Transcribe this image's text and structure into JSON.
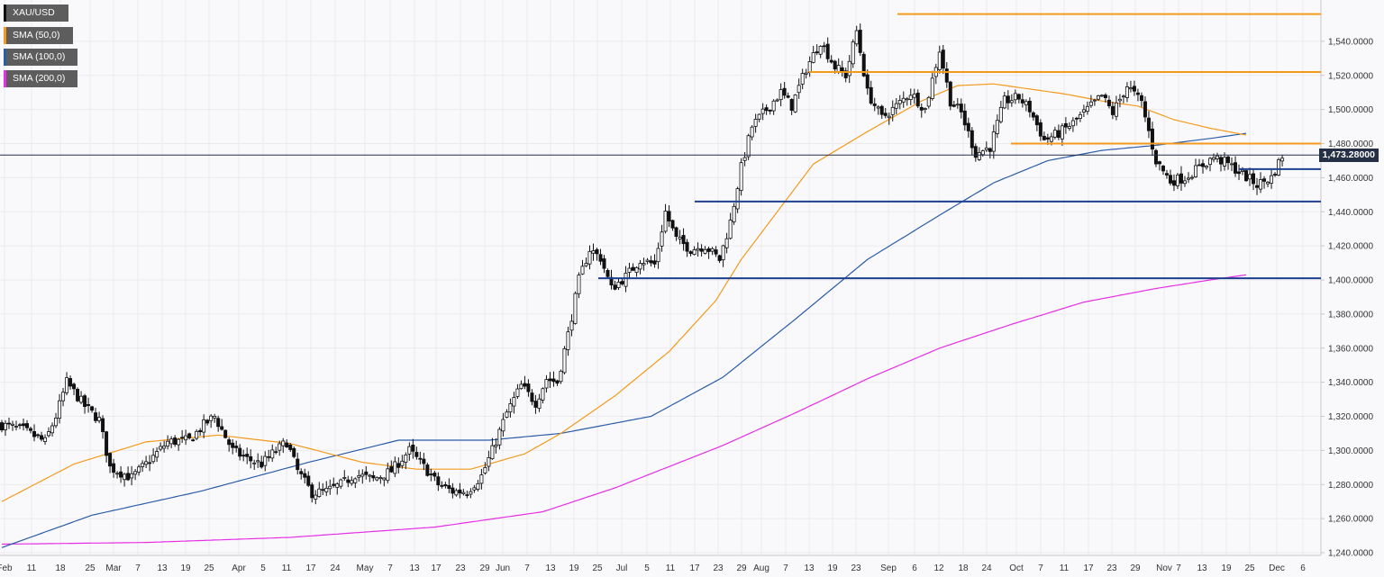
{
  "chart_data": {
    "type": "candlestick",
    "symbol": "XAU/USD",
    "ylim": [
      1240,
      1560
    ],
    "y_ticks": [
      "1,240.0000",
      "1,260.0000",
      "1,280.0000",
      "1,300.0000",
      "1,320.0000",
      "1,340.0000",
      "1,360.0000",
      "1,380.0000",
      "1,400.0000",
      "1,420.0000",
      "1,440.0000",
      "1,460.0000",
      "1,480.0000",
      "1,500.0000",
      "1,520.0000",
      "1,540.0000"
    ],
    "y_tick_values": [
      1240,
      1260,
      1280,
      1300,
      1320,
      1340,
      1360,
      1380,
      1400,
      1420,
      1440,
      1460,
      1480,
      1500,
      1520,
      1540
    ],
    "x_labels": [
      "Feb",
      "11",
      "18",
      "25",
      "Mar",
      "7",
      "13",
      "19",
      "25",
      "Apr",
      "5",
      "11",
      "17",
      "24",
      "May",
      "7",
      "13",
      "17",
      "23",
      "29",
      "Jun",
      "7",
      "13",
      "19",
      "25",
      "Jul",
      "5",
      "11",
      "17",
      "23",
      "29",
      "Aug",
      "7",
      "13",
      "19",
      "23",
      "Sep",
      "6",
      "12",
      "18",
      "24",
      "Oct",
      "7",
      "11",
      "17",
      "23",
      "29",
      "Nov",
      "7",
      "13",
      "19",
      "25",
      "Dec",
      "6"
    ],
    "legend": [
      {
        "label": "XAU/USD",
        "color": "#111111"
      },
      {
        "label": "SMA (50,0)",
        "color": "#f39a1c"
      },
      {
        "label": "SMA (100,0)",
        "color": "#2a5ca8"
      },
      {
        "label": "SMA (200,0)",
        "color": "#e52ee5"
      }
    ],
    "current_price": {
      "value": 1473.28,
      "label": "1,473.28000"
    },
    "horizontal_levels": [
      {
        "value": 1556,
        "color": "#f39a1c",
        "from": "Sep 1"
      },
      {
        "value": 1522,
        "color": "#f39a1c",
        "from": "Aug 16"
      },
      {
        "value": 1480,
        "color": "#f39a1c",
        "from": "Oct 1"
      },
      {
        "value": 1465,
        "color": "#1f3f8f",
        "from": "Nov 20"
      },
      {
        "value": 1446,
        "color": "#1f3f8f",
        "from": "Jun 20"
      },
      {
        "value": 1401,
        "color": "#1f3f8f",
        "from": "Jun 25"
      }
    ],
    "close_anchors": [
      [
        0,
        1315
      ],
      [
        6,
        1312
      ],
      [
        12,
        1305
      ],
      [
        15,
        1320
      ],
      [
        18,
        1340
      ],
      [
        23,
        1326
      ],
      [
        27,
        1318
      ],
      [
        30,
        1290
      ],
      [
        36,
        1284
      ],
      [
        40,
        1292
      ],
      [
        46,
        1305
      ],
      [
        52,
        1306
      ],
      [
        56,
        1315
      ],
      [
        59,
        1320
      ],
      [
        64,
        1300
      ],
      [
        68,
        1295
      ],
      [
        72,
        1292
      ],
      [
        75,
        1298
      ],
      [
        79,
        1305
      ],
      [
        82,
        1288
      ],
      [
        86,
        1275
      ],
      [
        90,
        1276
      ],
      [
        94,
        1280
      ],
      [
        98,
        1286
      ],
      [
        103,
        1283
      ],
      [
        108,
        1288
      ],
      [
        113,
        1300
      ],
      [
        118,
        1288
      ],
      [
        121,
        1280
      ],
      [
        125,
        1276
      ],
      [
        129,
        1276
      ],
      [
        133,
        1285
      ],
      [
        136,
        1300
      ],
      [
        140,
        1322
      ],
      [
        144,
        1338
      ],
      [
        148,
        1328
      ],
      [
        151,
        1342
      ],
      [
        154,
        1340
      ],
      [
        157,
        1368
      ],
      [
        160,
        1400
      ],
      [
        163,
        1418
      ],
      [
        166,
        1413
      ],
      [
        169,
        1395
      ],
      [
        173,
        1402
      ],
      [
        177,
        1412
      ],
      [
        181,
        1409
      ],
      [
        184,
        1440
      ],
      [
        187,
        1424
      ],
      [
        191,
        1418
      ],
      [
        195,
        1420
      ],
      [
        199,
        1412
      ],
      [
        202,
        1434
      ],
      [
        205,
        1466
      ],
      [
        208,
        1490
      ],
      [
        212,
        1500
      ],
      [
        216,
        1510
      ],
      [
        219,
        1502
      ],
      [
        223,
        1524
      ],
      [
        227,
        1540
      ],
      [
        231,
        1525
      ],
      [
        234,
        1520
      ],
      [
        237,
        1546
      ],
      [
        240,
        1510
      ],
      [
        244,
        1495
      ],
      [
        248,
        1502
      ],
      [
        252,
        1510
      ],
      [
        256,
        1500
      ],
      [
        260,
        1535
      ],
      [
        263,
        1505
      ],
      [
        266,
        1498
      ],
      [
        270,
        1474
      ],
      [
        274,
        1478
      ],
      [
        278,
        1505
      ],
      [
        282,
        1507
      ],
      [
        285,
        1500
      ],
      [
        289,
        1482
      ],
      [
        293,
        1486
      ],
      [
        297,
        1492
      ],
      [
        301,
        1500
      ],
      [
        305,
        1508
      ],
      [
        308,
        1498
      ],
      [
        312,
        1514
      ],
      [
        316,
        1504
      ],
      [
        320,
        1470
      ],
      [
        324,
        1458
      ],
      [
        328,
        1460
      ],
      [
        332,
        1466
      ],
      [
        336,
        1472
      ],
      [
        340,
        1468
      ],
      [
        344,
        1462
      ],
      [
        348,
        1456
      ],
      [
        352,
        1460
      ],
      [
        355,
        1473
      ]
    ],
    "sma50_anchors": [
      [
        0,
        1270
      ],
      [
        20,
        1292
      ],
      [
        40,
        1305
      ],
      [
        60,
        1309
      ],
      [
        80,
        1304
      ],
      [
        100,
        1293
      ],
      [
        115,
        1289
      ],
      [
        130,
        1289
      ],
      [
        145,
        1298
      ],
      [
        155,
        1310
      ],
      [
        170,
        1332
      ],
      [
        185,
        1358
      ],
      [
        198,
        1388
      ],
      [
        205,
        1412
      ],
      [
        215,
        1440
      ],
      [
        225,
        1468
      ],
      [
        240,
        1487
      ],
      [
        255,
        1505
      ],
      [
        265,
        1514
      ],
      [
        275,
        1515
      ],
      [
        285,
        1512
      ],
      [
        295,
        1509
      ],
      [
        305,
        1505
      ],
      [
        315,
        1502
      ],
      [
        325,
        1494
      ],
      [
        335,
        1489
      ],
      [
        345,
        1485
      ]
    ],
    "sma100_anchors": [
      [
        0,
        1243
      ],
      [
        25,
        1262
      ],
      [
        55,
        1276
      ],
      [
        85,
        1293
      ],
      [
        110,
        1306
      ],
      [
        135,
        1306
      ],
      [
        155,
        1310
      ],
      [
        180,
        1320
      ],
      [
        200,
        1343
      ],
      [
        220,
        1377
      ],
      [
        240,
        1412
      ],
      [
        260,
        1438
      ],
      [
        275,
        1457
      ],
      [
        290,
        1470
      ],
      [
        305,
        1476
      ],
      [
        320,
        1479
      ],
      [
        335,
        1483
      ],
      [
        345,
        1486
      ]
    ],
    "sma200_anchors": [
      [
        0,
        1245
      ],
      [
        40,
        1246
      ],
      [
        80,
        1249
      ],
      [
        120,
        1255
      ],
      [
        150,
        1264
      ],
      [
        170,
        1278
      ],
      [
        200,
        1303
      ],
      [
        220,
        1322
      ],
      [
        240,
        1342
      ],
      [
        260,
        1360
      ],
      [
        280,
        1374
      ],
      [
        300,
        1387
      ],
      [
        320,
        1395
      ],
      [
        335,
        1400
      ],
      [
        345,
        1403
      ]
    ]
  }
}
